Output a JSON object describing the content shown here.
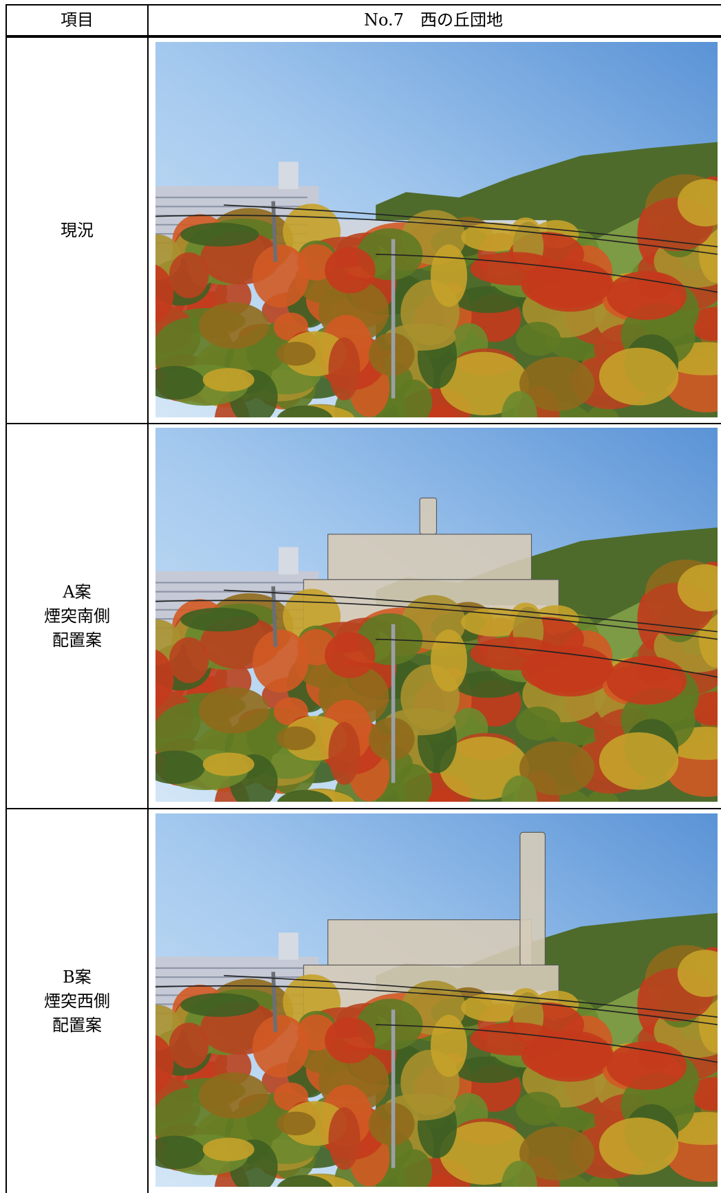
{
  "header": {
    "item": "項目",
    "location": "No.7　西の丘団地"
  },
  "rows": [
    {
      "label": [
        "現況"
      ]
    },
    {
      "label": [
        "A案",
        "煙突南側",
        "配置案"
      ]
    },
    {
      "label": [
        "B案",
        "煙突西側",
        "配置案"
      ]
    }
  ]
}
